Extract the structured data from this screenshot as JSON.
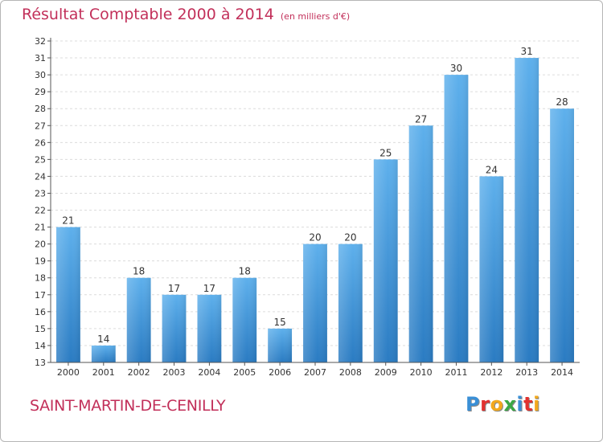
{
  "header": {
    "title": "Résultat Comptable 2000 à 2014",
    "subtitle": "(en milliers d'€)"
  },
  "footer": {
    "commune": "SAINT-MARTIN-DE-CENILLY"
  },
  "logo": {
    "text": "Proxiti",
    "letters": [
      {
        "ch": "P",
        "color": "#3a8fd6"
      },
      {
        "ch": "r",
        "color": "#e2312f"
      },
      {
        "ch": "o",
        "color": "#f2a81d"
      },
      {
        "ch": "x",
        "color": "#3aa845"
      },
      {
        "ch": "i",
        "color": "#3a8fd6"
      },
      {
        "ch": "t",
        "color": "#e2312f"
      },
      {
        "ch": "i",
        "color": "#f2a81d"
      }
    ]
  },
  "colors": {
    "accent": "#c2305a",
    "bar_top": "#5eb0ec",
    "bar_bottom": "#2a7bc2",
    "grid": "#dcdcdc",
    "axis": "#555555"
  },
  "chart_data": {
    "type": "bar",
    "title": "Résultat Comptable 2000 à 2014",
    "subtitle": "(en milliers d'€)",
    "categories": [
      "2000",
      "2001",
      "2002",
      "2003",
      "2004",
      "2005",
      "2006",
      "2007",
      "2008",
      "2009",
      "2010",
      "2011",
      "2012",
      "2013",
      "2014"
    ],
    "values": [
      21,
      14,
      18,
      17,
      17,
      18,
      15,
      20,
      20,
      25,
      27,
      30,
      24,
      31,
      28
    ],
    "ylim": [
      13,
      32
    ],
    "ytick_step": 1,
    "grid": true,
    "data_labels": true
  }
}
